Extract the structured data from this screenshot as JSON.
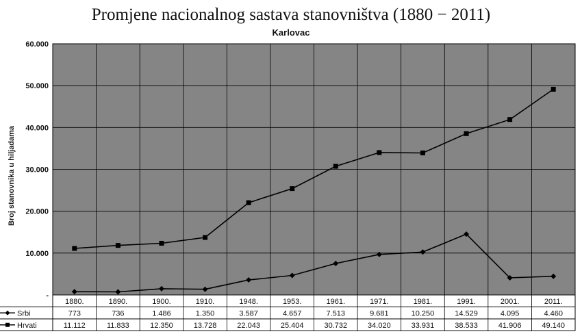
{
  "chart_data": {
    "type": "line",
    "title": "Promjene nacionalnog sastava stanovništva (1880 − 2011)",
    "subtitle": "Karlovac",
    "ylabel": "Broj stanovnika u hiljadama",
    "ylim": [
      0,
      60000
    ],
    "yticks": [
      "-",
      "10.000",
      "20.000",
      "30.000",
      "40.000",
      "50.000",
      "60.000"
    ],
    "categories": [
      "1880.",
      "1890.",
      "1900.",
      "1910.",
      "1948.",
      "1953.",
      "1961.",
      "1971.",
      "1981.",
      "1991.",
      "2001.",
      "2011."
    ],
    "grid": true,
    "legend": "data-table",
    "background_color": "#858585",
    "line_color": "#000000",
    "series": [
      {
        "name": "Srbi",
        "marker": "diamond",
        "values": [
          773,
          736,
          1486,
          1350,
          3587,
          4657,
          7513,
          9681,
          10250,
          14529,
          4095,
          4460
        ],
        "labels": [
          "773",
          "736",
          "1.486",
          "1.350",
          "3.587",
          "4.657",
          "7.513",
          "9.681",
          "10.250",
          "14.529",
          "4.095",
          "4.460"
        ]
      },
      {
        "name": "Hrvati",
        "marker": "square",
        "values": [
          11112,
          11833,
          12350,
          13728,
          22043,
          25404,
          30732,
          34020,
          33931,
          38533,
          41906,
          49140
        ],
        "labels": [
          "11.112",
          "11.833",
          "12.350",
          "13.728",
          "22.043",
          "25.404",
          "30.732",
          "34.020",
          "33.931",
          "38.533",
          "41.906",
          "49.140"
        ]
      }
    ]
  }
}
